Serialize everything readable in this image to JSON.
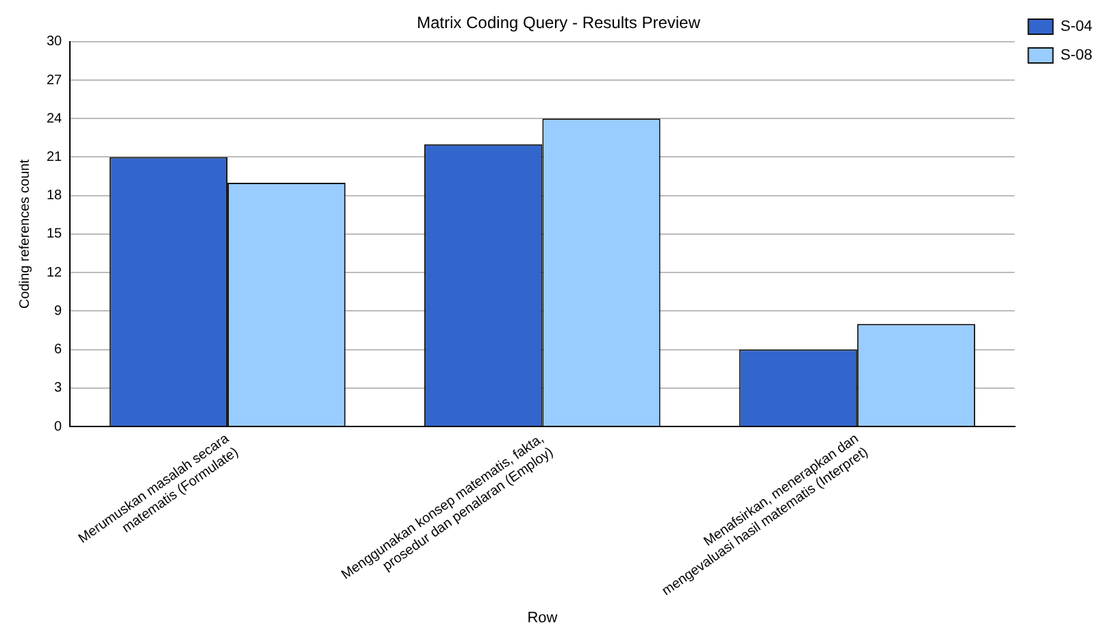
{
  "chart_data": {
    "type": "bar",
    "title": "Matrix Coding Query - Results Preview",
    "xlabel": "Row",
    "ylabel": "Coding references count",
    "categories": [
      "Merumuskan masalah secara matematis (Formulate)",
      "Menggunakan konsep matematis, fakta, prosedur dan penalaran (Employ)",
      "Menafsirkan, menerapkan dan mengevaluasi hasil matematis (Interpret)"
    ],
    "series": [
      {
        "name": "S-04",
        "color": "#3366cc",
        "values": [
          21,
          22,
          6
        ]
      },
      {
        "name": "S-08",
        "color": "#99ccff",
        "values": [
          19,
          24,
          8
        ]
      }
    ],
    "ylim": [
      0,
      30
    ],
    "yticks": [
      0,
      3,
      6,
      9,
      12,
      15,
      18,
      21,
      24,
      27,
      30
    ],
    "grid": "y",
    "legend": "right"
  }
}
